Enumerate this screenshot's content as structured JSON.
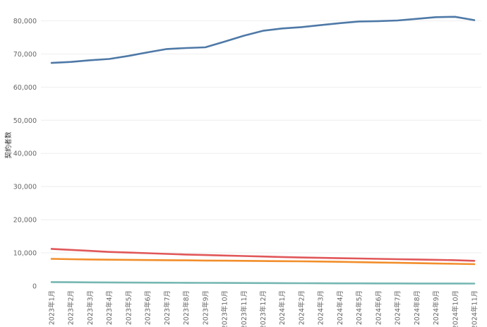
{
  "chart_data": {
    "type": "line",
    "ylabel": "契約者数",
    "xlabel": "",
    "ylim": [
      0,
      85000
    ],
    "y_ticks": [
      0,
      10000,
      20000,
      30000,
      40000,
      50000,
      60000,
      70000,
      80000
    ],
    "y_tick_labels": [
      "0",
      "10,000",
      "20,000",
      "30,000",
      "40,000",
      "50,000",
      "60,000",
      "70,000",
      "80,000"
    ],
    "grid": true,
    "legend": "none",
    "categories": [
      "2023年1月",
      "2023年2月",
      "2023年3月",
      "2023年4月",
      "2023年5月",
      "2023年6月",
      "2023年7月",
      "2023年8月",
      "2023年9月",
      "2023年10月",
      "2023年11月",
      "2023年12月",
      "2024年1月",
      "2024年2月",
      "2024年3月",
      "2024年4月",
      "2024年5月",
      "2024年6月",
      "2024年7月",
      "2024年8月",
      "2024年9月",
      "2024年10月",
      "2024年11月"
    ],
    "series": [
      {
        "color": "#4e79a7",
        "values": [
          67300,
          67600,
          68100,
          68500,
          69400,
          70500,
          71500,
          71800,
          72000,
          73700,
          75500,
          77000,
          77700,
          78100,
          78700,
          79300,
          79800,
          79900,
          80100,
          80600,
          81100,
          81200,
          80200
        ]
      },
      {
        "color": "#e15759",
        "values": [
          11200,
          10900,
          10600,
          10300,
          10100,
          9900,
          9700,
          9500,
          9350,
          9200,
          9050,
          8900,
          8750,
          8600,
          8500,
          8400,
          8300,
          8200,
          8100,
          8000,
          7900,
          7800,
          7600
        ]
      },
      {
        "color": "#f28e2b",
        "values": [
          8200,
          8100,
          8000,
          7950,
          7900,
          7850,
          7800,
          7750,
          7700,
          7650,
          7600,
          7550,
          7500,
          7450,
          7400,
          7300,
          7200,
          7100,
          7000,
          6900,
          6800,
          6700,
          6600
        ]
      },
      {
        "color": "#76b7b2",
        "values": [
          1200,
          1150,
          1100,
          1080,
          1050,
          1020,
          1000,
          980,
          960,
          940,
          920,
          900,
          880,
          860,
          840,
          820,
          800,
          790,
          780,
          770,
          760,
          760,
          750
        ]
      }
    ]
  }
}
